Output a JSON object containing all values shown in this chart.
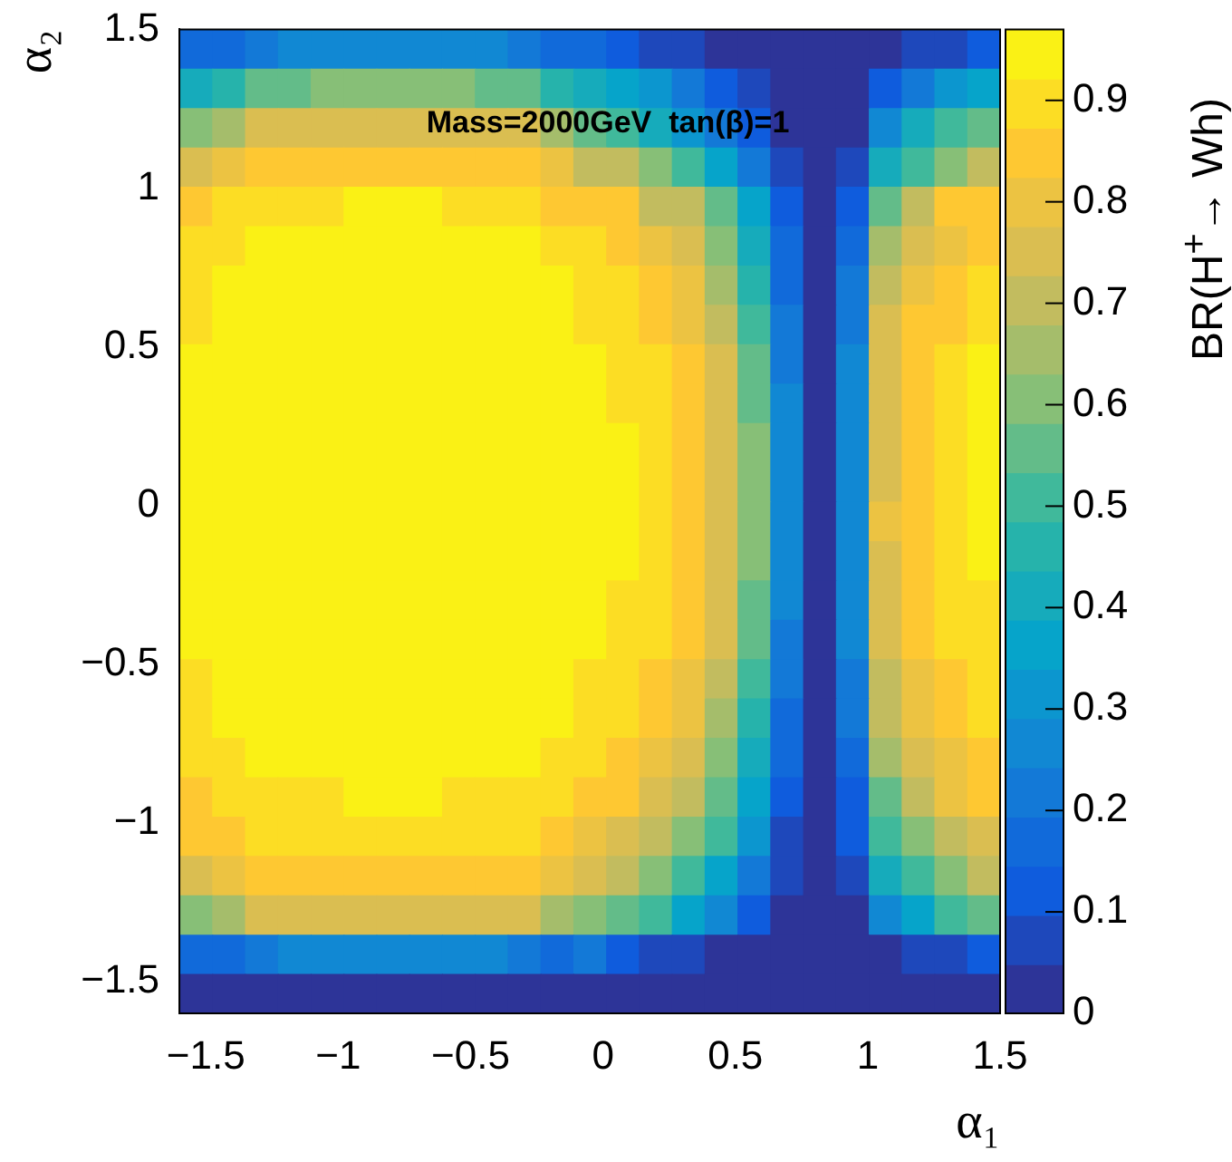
{
  "chart_data": {
    "type": "heatmap",
    "xlabel": "α₁",
    "ylabel": "α₂",
    "clabel": "BR(H$^{+}$→ Wh)",
    "annotations": [
      "Mass=2000GeV  tan(β)=1"
    ],
    "xlim": [
      -1.6,
      1.5
    ],
    "ylim": [
      -1.6,
      1.5
    ],
    "xticks": [
      {
        "value": -1.5,
        "label": "−1.5"
      },
      {
        "value": -1,
        "label": "−1"
      },
      {
        "value": -0.5,
        "label": "−0.5"
      },
      0,
      0.5,
      1,
      1.5
    ],
    "yticks": [
      {
        "value": -1.5,
        "label": "−1.5"
      },
      {
        "value": -1,
        "label": "−1"
      },
      {
        "value": -0.5,
        "label": "−0.5"
      },
      0,
      0.5,
      1,
      1.5
    ],
    "clim": [
      0,
      0.97
    ],
    "cticks": [
      0,
      0.1,
      0.2,
      0.3,
      0.4,
      0.5,
      0.6,
      0.7,
      0.8,
      0.9
    ],
    "cells": [
      [
        0.17,
        0.17,
        0.2,
        0.27,
        0.27,
        0.27,
        0.27,
        0.27,
        0.27,
        0.27,
        0.22,
        0.17,
        0.17,
        0.12,
        0.07,
        0.07,
        0.02,
        0.02,
        0.02,
        0.02,
        0.02,
        0.02,
        0.07,
        0.07,
        0.12
      ],
      [
        0.42,
        0.45,
        0.57,
        0.57,
        0.62,
        0.62,
        0.62,
        0.62,
        0.62,
        0.57,
        0.57,
        0.45,
        0.42,
        0.37,
        0.32,
        0.22,
        0.12,
        0.07,
        0.02,
        0.02,
        0.02,
        0.12,
        0.2,
        0.3,
        0.35
      ],
      [
        0.62,
        0.67,
        0.75,
        0.75,
        0.75,
        0.75,
        0.75,
        0.75,
        0.75,
        0.75,
        0.75,
        0.67,
        0.57,
        0.5,
        0.4,
        0.32,
        0.2,
        0.12,
        0.02,
        0.02,
        0.02,
        0.27,
        0.42,
        0.52,
        0.57
      ],
      [
        0.75,
        0.82,
        0.87,
        0.87,
        0.87,
        0.87,
        0.87,
        0.87,
        0.87,
        0.87,
        0.87,
        0.82,
        0.72,
        0.7,
        0.62,
        0.52,
        0.35,
        0.2,
        0.07,
        0.02,
        0.07,
        0.4,
        0.52,
        0.62,
        0.72
      ],
      [
        0.85,
        0.92,
        0.92,
        0.92,
        0.92,
        0.96,
        0.96,
        0.96,
        0.92,
        0.92,
        0.92,
        0.87,
        0.85,
        0.85,
        0.72,
        0.7,
        0.57,
        0.35,
        0.12,
        0.02,
        0.12,
        0.57,
        0.7,
        0.85,
        0.87
      ],
      [
        0.92,
        0.92,
        0.96,
        0.96,
        0.96,
        0.96,
        0.96,
        0.96,
        0.96,
        0.96,
        0.96,
        0.92,
        0.92,
        0.87,
        0.82,
        0.75,
        0.62,
        0.4,
        0.15,
        0.02,
        0.15,
        0.65,
        0.75,
        0.82,
        0.87
      ],
      [
        0.92,
        0.96,
        0.96,
        0.96,
        0.96,
        0.96,
        0.96,
        0.96,
        0.96,
        0.96,
        0.96,
        0.96,
        0.92,
        0.92,
        0.87,
        0.82,
        0.67,
        0.45,
        0.15,
        0.02,
        0.2,
        0.72,
        0.82,
        0.87,
        0.92
      ],
      [
        0.92,
        0.96,
        0.96,
        0.96,
        0.96,
        0.96,
        0.96,
        0.96,
        0.96,
        0.96,
        0.96,
        0.96,
        0.92,
        0.92,
        0.87,
        0.82,
        0.72,
        0.5,
        0.2,
        0.02,
        0.22,
        0.75,
        0.85,
        0.87,
        0.92
      ],
      [
        0.96,
        0.96,
        0.96,
        0.96,
        0.96,
        0.96,
        0.96,
        0.96,
        0.96,
        0.96,
        0.96,
        0.96,
        0.96,
        0.92,
        0.92,
        0.87,
        0.77,
        0.57,
        0.22,
        0.02,
        0.27,
        0.77,
        0.87,
        0.92,
        0.96
      ],
      [
        0.96,
        0.96,
        0.96,
        0.96,
        0.96,
        0.96,
        0.96,
        0.96,
        0.96,
        0.96,
        0.96,
        0.96,
        0.96,
        0.92,
        0.92,
        0.87,
        0.77,
        0.57,
        0.27,
        0.02,
        0.27,
        0.77,
        0.87,
        0.92,
        0.96
      ],
      [
        0.96,
        0.96,
        0.96,
        0.96,
        0.96,
        0.96,
        0.96,
        0.96,
        0.96,
        0.96,
        0.96,
        0.96,
        0.96,
        0.96,
        0.92,
        0.87,
        0.77,
        0.6,
        0.27,
        0.02,
        0.27,
        0.77,
        0.87,
        0.92,
        0.96
      ],
      [
        0.96,
        0.96,
        0.96,
        0.96,
        0.96,
        0.96,
        0.96,
        0.96,
        0.96,
        0.96,
        0.96,
        0.96,
        0.96,
        0.96,
        0.92,
        0.87,
        0.77,
        0.6,
        0.27,
        0.02,
        0.27,
        0.77,
        0.87,
        0.92,
        0.96
      ],
      [
        0.96,
        0.96,
        0.96,
        0.96,
        0.96,
        0.96,
        0.96,
        0.96,
        0.96,
        0.96,
        0.96,
        0.96,
        0.96,
        0.96,
        0.92,
        0.87,
        0.77,
        0.62,
        0.27,
        0.02,
        0.27,
        0.82,
        0.87,
        0.92,
        0.96
      ],
      [
        0.96,
        0.96,
        0.96,
        0.96,
        0.96,
        0.96,
        0.96,
        0.96,
        0.96,
        0.96,
        0.96,
        0.96,
        0.96,
        0.96,
        0.92,
        0.87,
        0.77,
        0.62,
        0.27,
        0.02,
        0.27,
        0.77,
        0.87,
        0.92,
        0.96
      ],
      [
        0.96,
        0.96,
        0.96,
        0.96,
        0.96,
        0.96,
        0.96,
        0.96,
        0.96,
        0.96,
        0.96,
        0.96,
        0.96,
        0.92,
        0.92,
        0.87,
        0.77,
        0.57,
        0.27,
        0.02,
        0.27,
        0.77,
        0.87,
        0.92,
        0.92
      ],
      [
        0.96,
        0.96,
        0.96,
        0.96,
        0.96,
        0.96,
        0.96,
        0.96,
        0.96,
        0.96,
        0.96,
        0.96,
        0.96,
        0.92,
        0.92,
        0.87,
        0.77,
        0.57,
        0.22,
        0.02,
        0.27,
        0.77,
        0.87,
        0.92,
        0.92
      ],
      [
        0.92,
        0.96,
        0.96,
        0.96,
        0.96,
        0.96,
        0.96,
        0.96,
        0.96,
        0.96,
        0.96,
        0.96,
        0.92,
        0.92,
        0.87,
        0.82,
        0.72,
        0.52,
        0.22,
        0.02,
        0.22,
        0.72,
        0.82,
        0.87,
        0.92
      ],
      [
        0.92,
        0.96,
        0.96,
        0.96,
        0.96,
        0.96,
        0.96,
        0.96,
        0.96,
        0.96,
        0.96,
        0.96,
        0.92,
        0.92,
        0.87,
        0.82,
        0.67,
        0.45,
        0.17,
        0.02,
        0.2,
        0.72,
        0.82,
        0.87,
        0.92
      ],
      [
        0.92,
        0.92,
        0.96,
        0.96,
        0.96,
        0.96,
        0.96,
        0.96,
        0.96,
        0.96,
        0.96,
        0.92,
        0.92,
        0.87,
        0.82,
        0.77,
        0.62,
        0.42,
        0.17,
        0.02,
        0.17,
        0.67,
        0.77,
        0.82,
        0.87
      ],
      [
        0.87,
        0.92,
        0.92,
        0.92,
        0.92,
        0.96,
        0.96,
        0.96,
        0.92,
        0.92,
        0.92,
        0.92,
        0.87,
        0.87,
        0.77,
        0.72,
        0.57,
        0.37,
        0.12,
        0.02,
        0.12,
        0.57,
        0.72,
        0.82,
        0.87
      ],
      [
        0.85,
        0.87,
        0.92,
        0.92,
        0.92,
        0.92,
        0.92,
        0.92,
        0.92,
        0.92,
        0.92,
        0.87,
        0.82,
        0.77,
        0.72,
        0.62,
        0.5,
        0.32,
        0.07,
        0.02,
        0.12,
        0.5,
        0.62,
        0.72,
        0.77
      ],
      [
        0.77,
        0.82,
        0.87,
        0.87,
        0.87,
        0.87,
        0.87,
        0.87,
        0.87,
        0.87,
        0.87,
        0.82,
        0.77,
        0.72,
        0.62,
        0.5,
        0.37,
        0.22,
        0.07,
        0.02,
        0.07,
        0.4,
        0.5,
        0.62,
        0.72
      ],
      [
        0.62,
        0.67,
        0.75,
        0.75,
        0.75,
        0.75,
        0.75,
        0.75,
        0.75,
        0.75,
        0.75,
        0.67,
        0.62,
        0.57,
        0.5,
        0.37,
        0.27,
        0.12,
        0.02,
        0.02,
        0.02,
        0.27,
        0.37,
        0.52,
        0.57
      ],
      [
        0.15,
        0.15,
        0.2,
        0.27,
        0.27,
        0.27,
        0.27,
        0.27,
        0.27,
        0.27,
        0.2,
        0.15,
        0.2,
        0.12,
        0.07,
        0.07,
        0.02,
        0.02,
        0.02,
        0.02,
        0.02,
        0.02,
        0.07,
        0.07,
        0.12
      ],
      [
        0.02,
        0.02,
        0.02,
        0.02,
        0.02,
        0.02,
        0.02,
        0.02,
        0.02,
        0.02,
        0.02,
        0.02,
        0.02,
        0.02,
        0.02,
        0.02,
        0.02,
        0.02,
        0.02,
        0.02,
        0.02,
        0.02,
        0.02,
        0.02,
        0.02
      ]
    ]
  }
}
